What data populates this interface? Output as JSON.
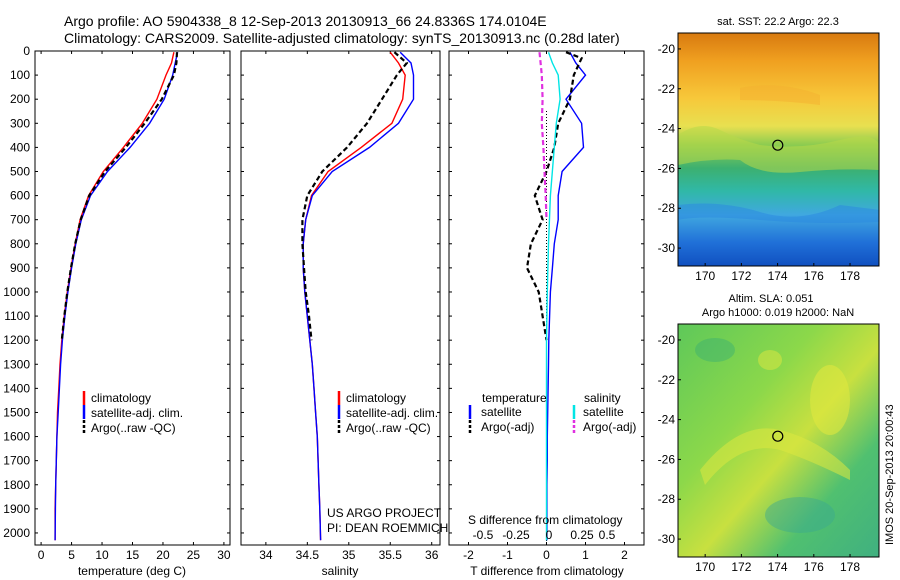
{
  "header": {
    "title_line1": "Argo profile: AO 5904338_8 12-Sep-2013 20130913_66 24.8336S 174.0104E",
    "title_line2": "Climatology: CARS2009. Satellite-adjusted climatology: synTS_20130913.nc (0.28d later)"
  },
  "colors": {
    "climatology": "#ff0000",
    "satellite": "#0000ff",
    "argo": "#000000",
    "satellite_salinity": "#00e5e5",
    "argo_salinity_adj": "#e030e0"
  },
  "legend": {
    "climatology": "climatology",
    "satellite_adj_clim": "satellite-adj. clim.",
    "argo_raw": "Argo(..raw -QC)",
    "temperature": "temperature",
    "salinity": "salinity",
    "satellite": "satellite",
    "argo_adj": "Argo(-adj)"
  },
  "annotations": {
    "project": "US ARGO PROJECT",
    "pi": "PI: DEAN ROEMMICH",
    "s_diff_label": "S difference from climatology",
    "s_diff_ticks": [
      "-0.5",
      "-0.25",
      "0",
      "0.25",
      "0.5"
    ],
    "imos_stamp": "IMOS 20-Sep-2013 20:00:43"
  },
  "maps": {
    "sst_title": "sat. SST: 22.2  Argo: 22.3",
    "sla_title_line1": "Altim. SLA: 0.051",
    "sla_title_line2": "Argo h1000: 0.019 h2000: NaN",
    "lon_ticks": [
      170,
      172,
      174,
      176,
      178
    ],
    "lat_ticks": [
      -20,
      -22,
      -24,
      -26,
      -28,
      -30
    ],
    "lon_range": [
      168.5,
      179.6
    ],
    "lat_range": [
      -30.9,
      -19.2
    ],
    "float_position": {
      "lon": 174.0104,
      "lat": -24.8336
    }
  },
  "chart_data": [
    {
      "type": "line",
      "xlabel": "temperature (deg C)",
      "xlim": [
        -1,
        31
      ],
      "ylim": [
        2050,
        0
      ],
      "xticks": [
        0,
        5,
        10,
        15,
        20,
        25,
        30
      ],
      "yticks": [
        0,
        100,
        200,
        300,
        400,
        500,
        600,
        700,
        800,
        900,
        1000,
        1100,
        1200,
        1300,
        1400,
        1500,
        1600,
        1700,
        1800,
        1900,
        2000
      ],
      "series": [
        {
          "name": "climatology",
          "color": "#ff0000",
          "x": [
            21.8,
            21.4,
            20.5,
            19.0,
            16.6,
            13.5,
            10.2,
            7.8,
            6.4,
            5.6,
            4.9,
            4.3,
            3.8,
            3.4,
            3.1,
            2.9,
            2.7,
            2.6,
            2.5,
            2.4,
            2.3,
            2.3
          ],
          "y": [
            5,
            50,
            100,
            200,
            300,
            400,
            500,
            600,
            700,
            800,
            900,
            1000,
            1100,
            1200,
            1300,
            1400,
            1500,
            1600,
            1700,
            1800,
            1900,
            2030
          ]
        },
        {
          "name": "satellite-adj. clim.",
          "color": "#0000ff",
          "x": [
            22.4,
            22.0,
            21.6,
            20.2,
            17.8,
            14.6,
            10.9,
            8.1,
            6.6,
            5.7,
            5.0,
            4.4,
            3.9,
            3.5,
            3.2,
            3.0,
            2.8,
            2.6,
            2.5,
            2.4,
            2.35,
            2.3
          ],
          "y": [
            5,
            50,
            100,
            200,
            300,
            400,
            500,
            600,
            700,
            800,
            900,
            1000,
            1100,
            1200,
            1300,
            1400,
            1500,
            1600,
            1700,
            1800,
            1900,
            2030
          ]
        },
        {
          "name": "Argo(..raw -QC)",
          "color": "#000000",
          "dashed": true,
          "x": [
            22.3,
            22.2,
            21.8,
            19.8,
            17.0,
            13.9,
            10.5,
            7.9,
            6.5,
            5.6,
            4.9,
            4.3,
            3.8,
            3.4
          ],
          "y": [
            5,
            50,
            100,
            200,
            300,
            400,
            500,
            600,
            700,
            800,
            900,
            1000,
            1100,
            1200
          ]
        }
      ]
    },
    {
      "type": "line",
      "xlabel": "salinity",
      "xlim": [
        33.7,
        36.1
      ],
      "ylim": [
        2050,
        0
      ],
      "xticks": [
        34,
        34.5,
        35,
        35.5,
        36
      ],
      "series": [
        {
          "name": "climatology",
          "color": "#ff0000",
          "x": [
            35.5,
            35.6,
            35.68,
            35.65,
            35.52,
            35.15,
            34.75,
            34.55,
            34.48,
            34.45,
            34.45,
            34.47,
            34.5,
            34.53,
            34.56,
            34.58,
            34.6,
            34.62,
            34.63,
            34.64,
            34.65,
            34.66
          ],
          "y": [
            5,
            50,
            100,
            200,
            300,
            400,
            500,
            600,
            700,
            800,
            900,
            1000,
            1100,
            1200,
            1300,
            1400,
            1500,
            1600,
            1700,
            1800,
            1900,
            2030
          ]
        },
        {
          "name": "satellite-adj. clim.",
          "color": "#0000ff",
          "x": [
            35.62,
            35.75,
            35.78,
            35.78,
            35.6,
            35.25,
            34.8,
            34.56,
            34.48,
            34.45,
            34.45,
            34.47,
            34.5,
            34.53,
            34.56,
            34.58,
            34.6,
            34.62,
            34.63,
            34.64,
            34.65,
            34.66
          ],
          "y": [
            5,
            50,
            100,
            200,
            300,
            400,
            500,
            600,
            700,
            800,
            900,
            1000,
            1100,
            1200,
            1300,
            1400,
            1500,
            1600,
            1700,
            1800,
            1900,
            2030
          ]
        },
        {
          "name": "Argo(..raw -QC)",
          "color": "#000000",
          "dashed": true,
          "x": [
            35.55,
            35.7,
            35.58,
            35.4,
            35.22,
            34.98,
            34.68,
            34.5,
            34.44,
            34.44,
            34.46,
            34.48,
            34.52,
            34.55
          ],
          "y": [
            5,
            50,
            100,
            200,
            300,
            400,
            500,
            600,
            700,
            800,
            900,
            1000,
            1100,
            1200
          ]
        }
      ]
    },
    {
      "type": "line",
      "xlabel": "T difference from climatology",
      "xlim": [
        -2.5,
        2.5
      ],
      "ylim": [
        2050,
        0
      ],
      "xticks": [
        -2,
        -1,
        0,
        1,
        2
      ],
      "series": [
        {
          "name": "satellite (temperature)",
          "color": "#0000ff",
          "x": [
            0.6,
            0.75,
            1.0,
            0.5,
            0.9,
            0.95,
            0.4,
            0.3,
            0.3,
            0.2,
            0.15,
            0.1,
            0.08,
            0.06,
            0.05,
            0.04,
            0.03,
            0.02,
            0.02,
            0.01,
            0.01
          ],
          "y": [
            5,
            50,
            100,
            200,
            300,
            400,
            500,
            600,
            700,
            800,
            900,
            1000,
            1100,
            1200,
            1300,
            1400,
            1500,
            1600,
            1700,
            1800,
            2030
          ]
        },
        {
          "name": "Argo(-adj) (temperature)",
          "color": "#000000",
          "dashed": true,
          "x": [
            0.5,
            0.9,
            0.7,
            0.6,
            0.3,
            0.2,
            0.0,
            -0.3,
            -0.1,
            -0.4,
            -0.5,
            -0.2,
            0.0
          ],
          "y": [
            5,
            30,
            100,
            200,
            300,
            400,
            500,
            600,
            700,
            800,
            900,
            1000,
            1200
          ]
        },
        {
          "name": "satellite (salinity)",
          "color": "#00e5e5",
          "x": [
            0.05,
            0.15,
            0.3,
            0.35,
            0.25,
            0.2,
            0.1,
            0.05,
            0.02,
            0.0,
            0.0,
            0.0,
            0.0
          ],
          "y": [
            5,
            50,
            100,
            200,
            300,
            400,
            600,
            800,
            1000,
            1200,
            1500,
            1800,
            2030
          ]
        },
        {
          "name": "Argo(-adj) (salinity)",
          "color": "#e030e0",
          "dashed": true,
          "x": [
            -0.18,
            -0.15,
            -0.12,
            -0.1,
            -0.12,
            -0.08,
            -0.05,
            -0.02,
            0.0
          ],
          "y": [
            5,
            50,
            100,
            200,
            300,
            400,
            500,
            600,
            700
          ]
        }
      ]
    }
  ]
}
